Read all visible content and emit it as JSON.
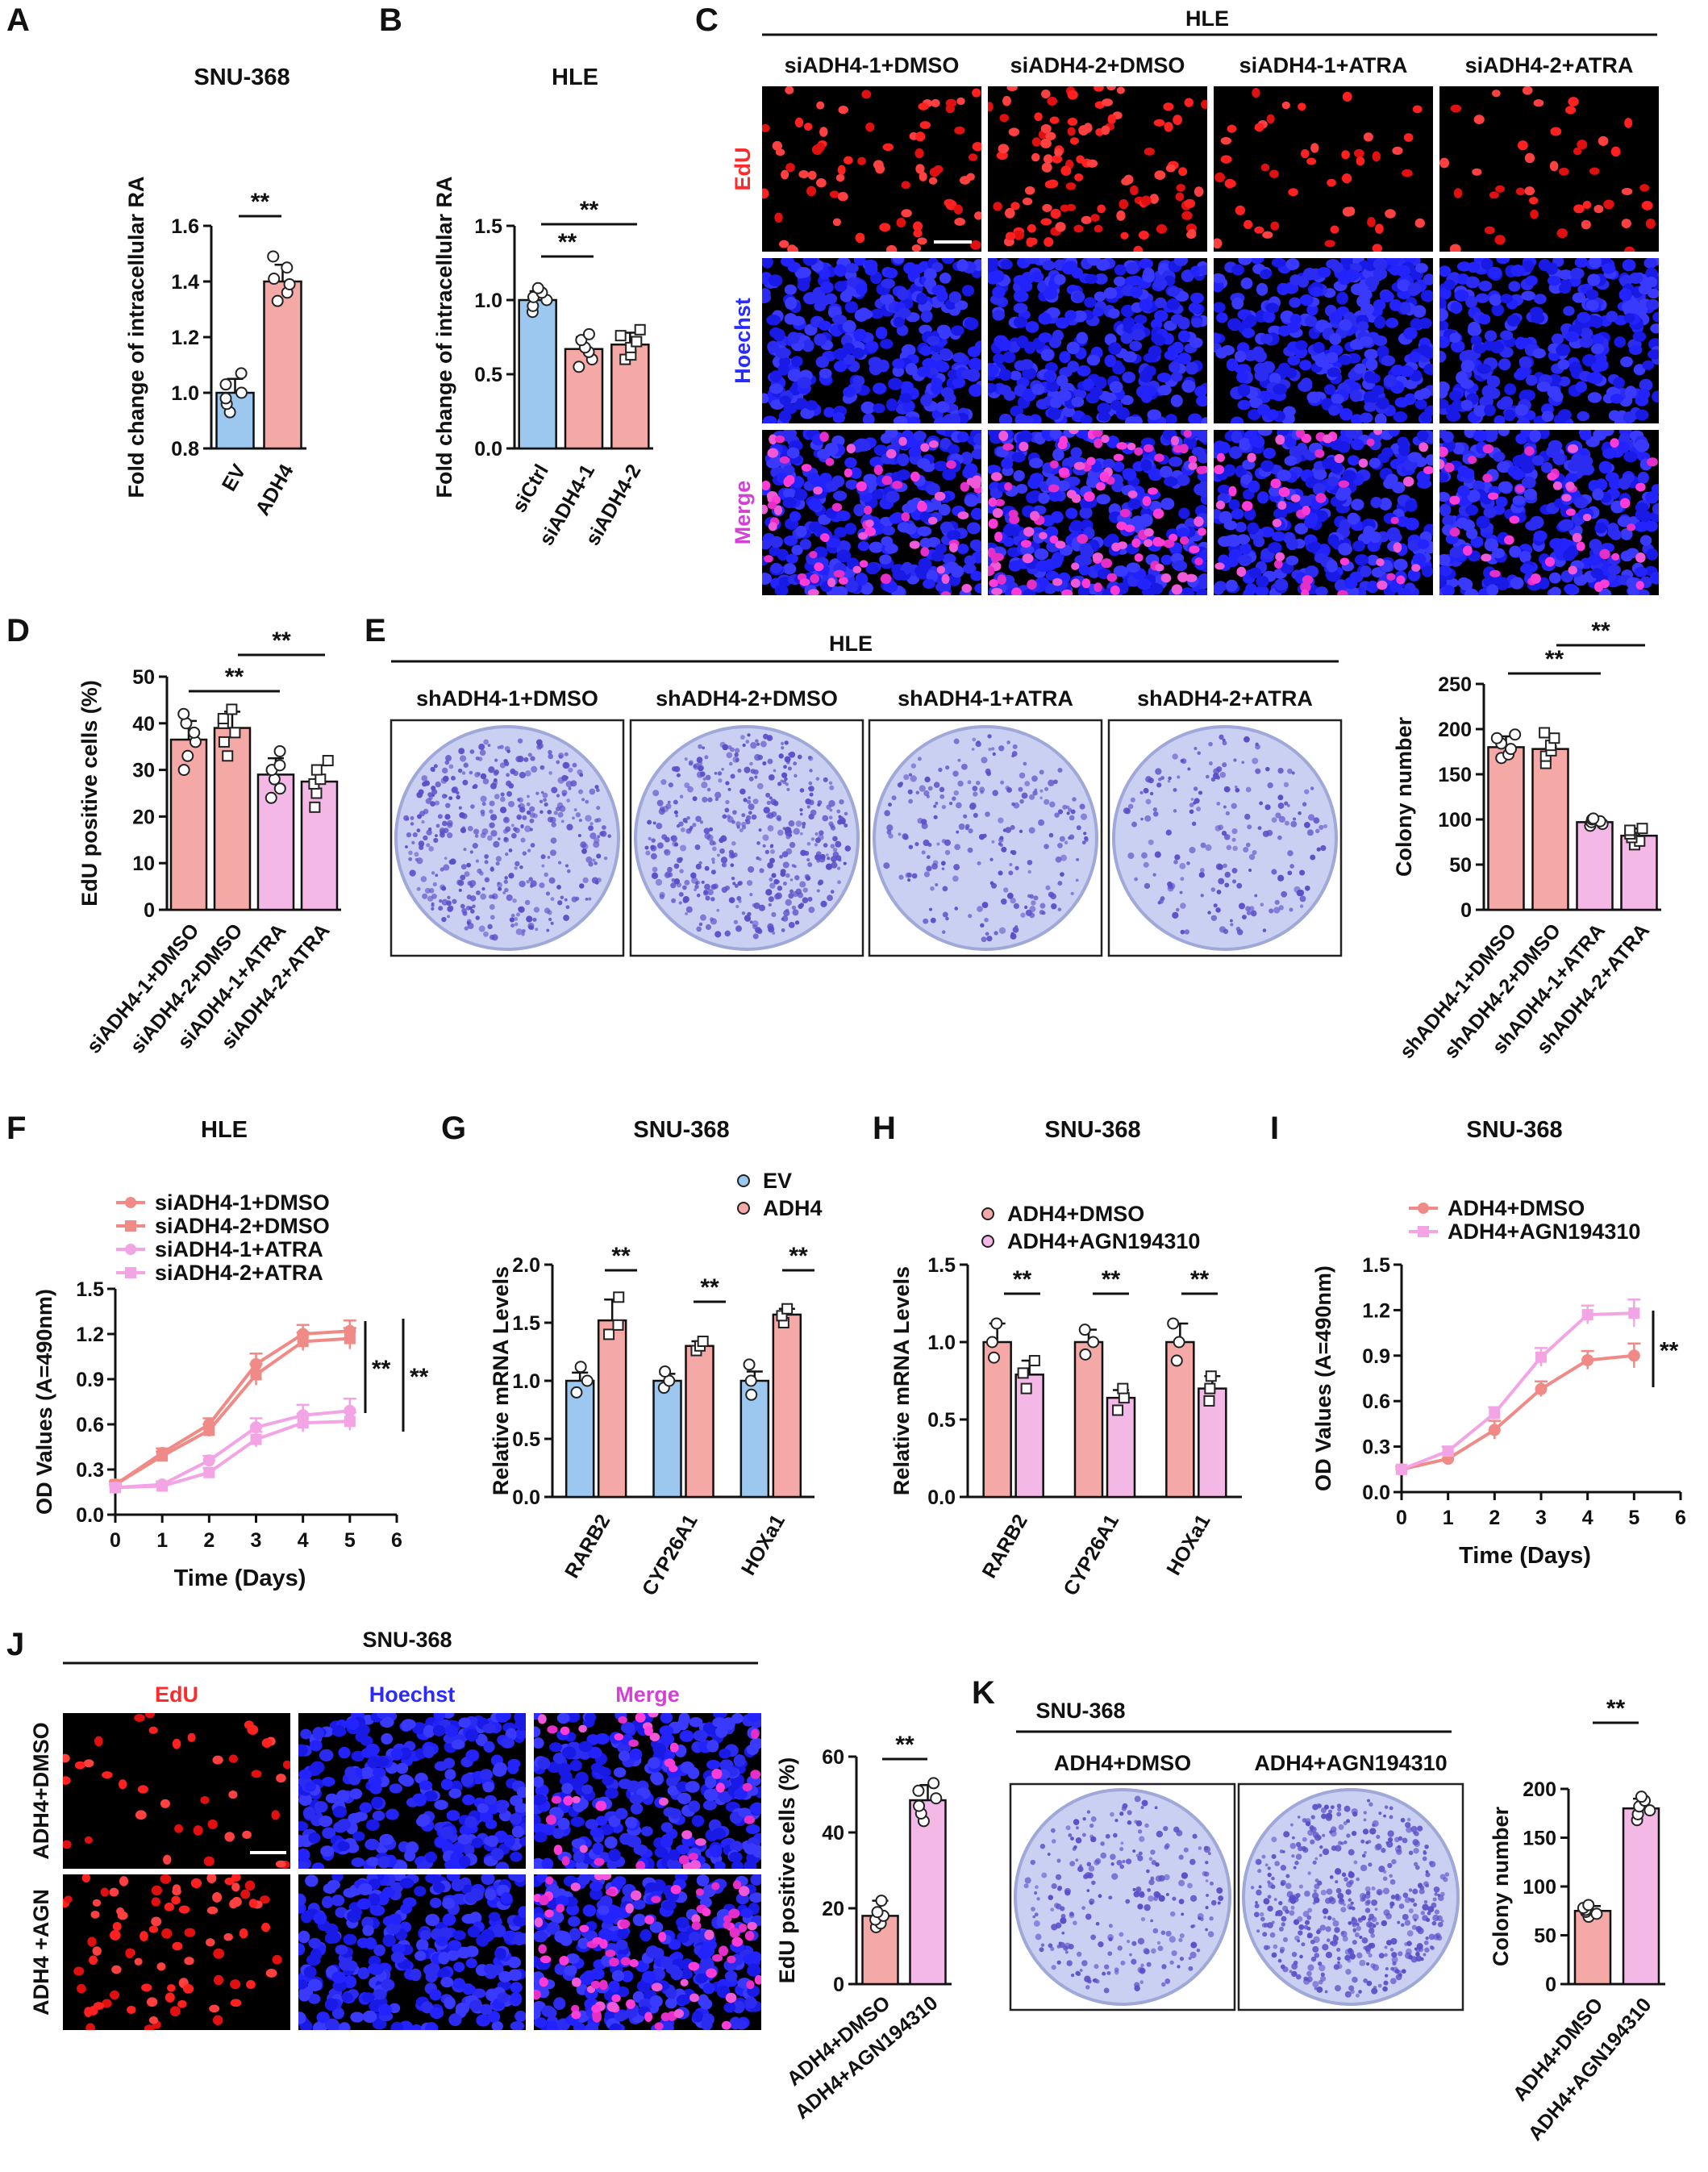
{
  "colors": {
    "ev": "#9cc8ef",
    "ctrl": "#9cc8ef",
    "dmso": "#f5a9a7",
    "atra": "#f4b8e6",
    "dmso_line": "#f08a86",
    "atra_line": "#f2a4e4",
    "edu": "#ff2a2a",
    "hoechst": "#2b2bff",
    "merge": "#d43fd6",
    "plate": "#c9d0f2",
    "colony": "#5a4ec8"
  },
  "panels": {
    "A": {
      "letter": "A"
    },
    "B": {
      "letter": "B"
    },
    "C": {
      "letter": "C",
      "header": "HLE",
      "columns": [
        "siADH4-1+DMSO",
        "siADH4-2+DMSO",
        "siADH4-1+ATRA",
        "siADH4-2+ATRA"
      ],
      "rows": [
        "EdU",
        "Hoechst",
        "Merge"
      ]
    },
    "D": {
      "letter": "D"
    },
    "E": {
      "letter": "E",
      "header": "HLE",
      "columns": [
        "shADH4-1+DMSO",
        "shADH4-2+DMSO",
        "shADH4-1+ATRA",
        "shADH4-2+ATRA"
      ]
    },
    "F": {
      "letter": "F"
    },
    "G": {
      "letter": "G"
    },
    "H": {
      "letter": "H"
    },
    "I": {
      "letter": "I"
    },
    "J": {
      "letter": "J",
      "header": "SNU-368",
      "columns": [
        "EdU",
        "Hoechst",
        "Merge"
      ],
      "rows": [
        "ADH4+DMSO",
        "ADH4 +AGN"
      ]
    },
    "K": {
      "letter": "K",
      "header": "SNU-368",
      "columns": [
        "ADH4+DMSO",
        "ADH4+AGN194310"
      ]
    }
  },
  "chart_data": [
    {
      "id": "A",
      "type": "bar",
      "title": "SNU-368",
      "ylabel": "Fold change of intracellular RA",
      "categories": [
        "EV",
        "ADH4"
      ],
      "values": [
        1.0,
        1.4
      ],
      "errors": [
        0.05,
        0.06
      ],
      "ylim": [
        0.8,
        1.6
      ],
      "yticks": [
        "0.8",
        "1.0",
        "1.2",
        "1.4",
        "1.6"
      ],
      "points": [
        [
          0.93,
          0.96,
          0.98,
          1.0,
          1.03,
          1.07
        ],
        [
          1.33,
          1.36,
          1.39,
          1.41,
          1.45,
          1.49
        ]
      ],
      "significance": [
        "**"
      ]
    },
    {
      "id": "B",
      "type": "bar",
      "title": "HLE",
      "ylabel": "Fold change of intracellular RA",
      "categories": [
        "siCtrl",
        "siADH4-1",
        "siADH4-2"
      ],
      "values": [
        1.0,
        0.67,
        0.7
      ],
      "errors": [
        0.06,
        0.08,
        0.08
      ],
      "ylim": [
        0,
        1.5
      ],
      "yticks": [
        "0.0",
        "0.5",
        "1.0",
        "1.5"
      ],
      "points": [
        [
          0.92,
          0.96,
          1.0,
          1.02,
          1.05,
          1.08
        ],
        [
          0.55,
          0.6,
          0.65,
          0.68,
          0.73,
          0.77
        ],
        [
          0.6,
          0.63,
          0.68,
          0.72,
          0.76,
          0.8
        ]
      ],
      "significance": [
        "**",
        "**"
      ]
    },
    {
      "id": "D",
      "type": "bar",
      "ylabel": "EdU positive cells (%)",
      "categories": [
        "siADH4-1+DMSO",
        "siADH4-2+DMSO",
        "siADH4-1+ATRA",
        "siADH4-2+ATRA"
      ],
      "values": [
        36.5,
        39,
        29,
        27.5
      ],
      "errors": [
        4,
        3.5,
        3.5,
        3.5
      ],
      "ylim": [
        0,
        50
      ],
      "yticks": [
        "0",
        "10",
        "20",
        "30",
        "40",
        "50"
      ],
      "points": [
        [
          30,
          33,
          36,
          38,
          40,
          42
        ],
        [
          33,
          36,
          38,
          40,
          41,
          43
        ],
        [
          24,
          26,
          28,
          30,
          31,
          34
        ],
        [
          22,
          25,
          27,
          28,
          30,
          32
        ]
      ],
      "significance": [
        "**",
        "**"
      ]
    },
    {
      "id": "E",
      "type": "bar",
      "ylabel": "Colony number",
      "categories": [
        "shADH4-1+DMSO",
        "shADH4-2+DMSO",
        "shADH4-1+ATRA",
        "shADH4-2+ATRA"
      ],
      "values": [
        180,
        178,
        97,
        82
      ],
      "errors": [
        12,
        15,
        4,
        8
      ],
      "ylim": [
        0,
        250
      ],
      "yticks": [
        "0",
        "50",
        "100",
        "150",
        "200",
        "250"
      ],
      "points": [
        [
          168,
          172,
          178,
          184,
          190,
          194
        ],
        [
          162,
          170,
          176,
          182,
          190,
          196
        ],
        [
          93,
          95,
          97,
          98,
          100,
          101
        ],
        [
          72,
          76,
          80,
          84,
          88,
          90
        ]
      ],
      "significance": [
        "**",
        "**"
      ]
    },
    {
      "id": "F",
      "type": "line",
      "title": "HLE",
      "xlabel": "Time (Days)",
      "ylabel": "OD Values (A=490nm)",
      "x": [
        0,
        1,
        2,
        3,
        4,
        5
      ],
      "xlim": [
        0,
        6
      ],
      "ylim": [
        0,
        1.5
      ],
      "xticks": [
        "0",
        "1",
        "2",
        "3",
        "4",
        "5",
        "6"
      ],
      "yticks": [
        "0.0",
        "0.3",
        "0.6",
        "0.9",
        "1.2",
        "1.5"
      ],
      "series": [
        {
          "name": "siADH4-1+DMSO",
          "values": [
            0.2,
            0.41,
            0.6,
            1.0,
            1.2,
            1.22
          ],
          "errors": [
            0.02,
            0.03,
            0.04,
            0.07,
            0.06,
            0.07
          ]
        },
        {
          "name": "siADH4-2+DMSO",
          "values": [
            0.2,
            0.39,
            0.56,
            0.93,
            1.15,
            1.17
          ],
          "errors": [
            0.02,
            0.03,
            0.04,
            0.07,
            0.06,
            0.07
          ]
        },
        {
          "name": "siADH4-1+ATRA",
          "values": [
            0.18,
            0.2,
            0.36,
            0.58,
            0.66,
            0.69
          ],
          "errors": [
            0.02,
            0.02,
            0.03,
            0.06,
            0.07,
            0.08
          ]
        },
        {
          "name": "siADH4-2+ATRA",
          "values": [
            0.18,
            0.19,
            0.28,
            0.5,
            0.61,
            0.62
          ],
          "errors": [
            0.02,
            0.02,
            0.03,
            0.05,
            0.06,
            0.06
          ]
        }
      ],
      "significance": [
        "**",
        "**"
      ]
    },
    {
      "id": "G",
      "type": "bar",
      "title": "SNU-368",
      "ylabel": "Relative mRNA Levels",
      "categories": [
        "RARB2",
        "CYP26A1",
        "HOXa1"
      ],
      "ylim": [
        0,
        2.0
      ],
      "yticks": [
        "0.0",
        "0.5",
        "1.0",
        "1.5",
        "2.0"
      ],
      "series": [
        {
          "name": "EV",
          "values": [
            1.0,
            1.0,
            1.0
          ],
          "errors": [
            0.07,
            0.06,
            0.08
          ],
          "points": [
            [
              0.9,
              1.0,
              1.12
            ],
            [
              0.94,
              1.0,
              1.08
            ],
            [
              0.88,
              1.0,
              1.14
            ]
          ]
        },
        {
          "name": "ADH4",
          "values": [
            1.52,
            1.3,
            1.57
          ],
          "errors": [
            0.18,
            0.04,
            0.05
          ],
          "points": [
            [
              1.4,
              1.48,
              1.72
            ],
            [
              1.26,
              1.3,
              1.34
            ],
            [
              1.5,
              1.56,
              1.62
            ]
          ]
        }
      ],
      "significance": [
        "**",
        "**",
        "**"
      ]
    },
    {
      "id": "H",
      "type": "bar",
      "title": "SNU-368",
      "ylabel": "Relative mRNA Levels",
      "categories": [
        "RARB2",
        "CYP26A1",
        "HOXa1"
      ],
      "ylim": [
        0,
        1.5
      ],
      "yticks": [
        "0.0",
        "0.5",
        "1.0",
        "1.5"
      ],
      "series": [
        {
          "name": "ADH4+DMSO",
          "values": [
            1.0,
            1.0,
            1.0
          ],
          "errors": [
            0.12,
            0.08,
            0.12
          ],
          "points": [
            [
              0.9,
              1.0,
              1.12
            ],
            [
              0.92,
              1.0,
              1.08
            ],
            [
              0.88,
              1.0,
              1.12
            ]
          ]
        },
        {
          "name": "ADH4+AGN194310",
          "values": [
            0.79,
            0.64,
            0.7
          ],
          "errors": [
            0.09,
            0.05,
            0.08
          ],
          "points": [
            [
              0.7,
              0.8,
              0.88
            ],
            [
              0.56,
              0.64,
              0.7
            ],
            [
              0.62,
              0.7,
              0.78
            ]
          ]
        }
      ],
      "significance": [
        "**",
        "**",
        "**"
      ]
    },
    {
      "id": "I",
      "type": "line",
      "title": "SNU-368",
      "xlabel": "Time (Days)",
      "ylabel": "OD Values (A=490nm)",
      "x": [
        0,
        1,
        2,
        3,
        4,
        5
      ],
      "xlim": [
        0,
        6
      ],
      "ylim": [
        0,
        1.5
      ],
      "xticks": [
        "0",
        "1",
        "2",
        "3",
        "4",
        "5",
        "6"
      ],
      "yticks": [
        "0.0",
        "0.3",
        "0.6",
        "0.9",
        "1.2",
        "1.5"
      ],
      "series": [
        {
          "name": "ADH4+DMSO",
          "values": [
            0.15,
            0.22,
            0.41,
            0.68,
            0.87,
            0.9
          ],
          "errors": [
            0.02,
            0.03,
            0.06,
            0.05,
            0.06,
            0.08
          ]
        },
        {
          "name": "ADH4+AGN194310",
          "values": [
            0.15,
            0.27,
            0.52,
            0.89,
            1.17,
            1.18
          ],
          "errors": [
            0.02,
            0.03,
            0.04,
            0.06,
            0.06,
            0.09
          ]
        }
      ],
      "significance": [
        "**"
      ]
    },
    {
      "id": "J",
      "type": "bar",
      "ylabel": "EdU positive cells (%)",
      "categories": [
        "ADH4+DMSO",
        "ADH4+AGN194310"
      ],
      "values": [
        18,
        48.5
      ],
      "errors": [
        4,
        4
      ],
      "ylim": [
        0,
        60
      ],
      "yticks": [
        "0",
        "20",
        "40",
        "60"
      ],
      "points": [
        [
          15,
          16,
          17,
          18,
          19,
          22
        ],
        [
          43,
          45,
          47,
          49,
          51,
          53
        ]
      ],
      "significance": [
        "**"
      ]
    },
    {
      "id": "K",
      "type": "bar",
      "ylabel": "Colony number",
      "categories": [
        "ADH4+DMSO",
        "ADH4+AGN194310"
      ],
      "values": [
        75,
        180
      ],
      "errors": [
        5,
        10
      ],
      "ylim": [
        0,
        200
      ],
      "yticks": [
        "0",
        "50",
        "100",
        "150",
        "200"
      ],
      "points": [
        [
          69,
          72,
          74,
          76,
          78,
          81
        ],
        [
          168,
          174,
          178,
          182,
          188,
          192
        ]
      ],
      "significance": [
        "**"
      ]
    }
  ]
}
